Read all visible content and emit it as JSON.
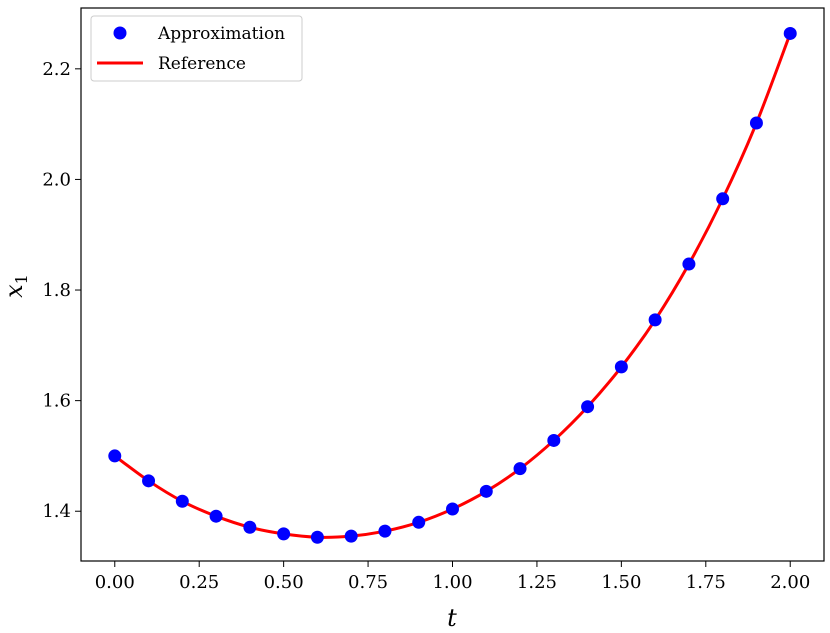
{
  "chart_data": {
    "type": "line",
    "xlabel": "t",
    "ylabel": "x",
    "ylabel_subscript": "1",
    "xlim": [
      -0.1,
      2.1
    ],
    "ylim": [
      1.31,
      2.31
    ],
    "xticks": [
      0.0,
      0.25,
      0.5,
      0.75,
      1.0,
      1.25,
      1.5,
      1.75,
      2.0
    ],
    "xtick_labels": [
      "0.00",
      "0.25",
      "0.50",
      "0.75",
      "1.00",
      "1.25",
      "1.50",
      "1.75",
      "2.00"
    ],
    "yticks": [
      1.4,
      1.6,
      1.8,
      2.0,
      2.2
    ],
    "ytick_labels": [
      "1.4",
      "1.6",
      "1.8",
      "2.0",
      "2.2"
    ],
    "grid": false,
    "legend_position": "top-left",
    "series": [
      {
        "name": "Approximation",
        "style": "markers",
        "color": "#0000ff",
        "x": [
          0.0,
          0.1,
          0.2,
          0.3,
          0.4,
          0.5,
          0.6,
          0.7,
          0.8,
          0.9,
          1.0,
          1.1,
          1.2,
          1.3,
          1.4,
          1.5,
          1.6,
          1.7,
          1.8,
          1.9,
          2.0
        ],
        "y": [
          1.5,
          1.455,
          1.418,
          1.391,
          1.371,
          1.359,
          1.353,
          1.355,
          1.364,
          1.38,
          1.404,
          1.436,
          1.477,
          1.528,
          1.589,
          1.661,
          1.746,
          1.847,
          1.965,
          2.102,
          2.264
        ]
      },
      {
        "name": "Reference",
        "style": "line",
        "color": "#ff0000",
        "x": [
          0.0,
          0.1,
          0.2,
          0.3,
          0.4,
          0.5,
          0.6,
          0.7,
          0.8,
          0.9,
          1.0,
          1.1,
          1.2,
          1.3,
          1.4,
          1.5,
          1.6,
          1.7,
          1.8,
          1.9,
          2.0
        ],
        "y": [
          1.5,
          1.455,
          1.418,
          1.391,
          1.371,
          1.359,
          1.353,
          1.355,
          1.364,
          1.38,
          1.404,
          1.436,
          1.477,
          1.528,
          1.589,
          1.661,
          1.746,
          1.847,
          1.965,
          2.102,
          2.264
        ]
      }
    ]
  }
}
